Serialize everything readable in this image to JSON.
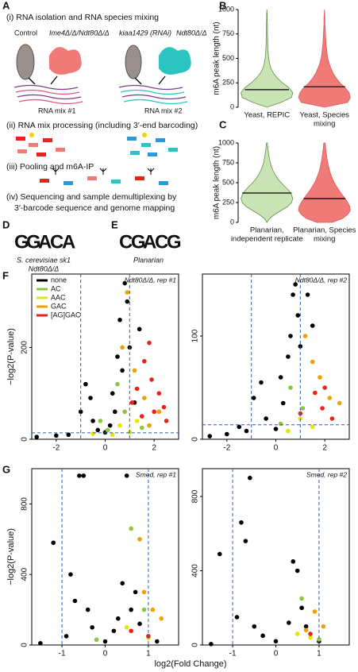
{
  "panel_labels": [
    "A",
    "B",
    "C",
    "D",
    "E",
    "F",
    "G"
  ],
  "panel_a": {
    "step1": "(i) RNA isolation and RNA species mixing",
    "groups": [
      "Control",
      "Ime4Δ/Δ/Ndt80Δ/Δ",
      "kiaa1429 (RNAi)",
      "Ndt80Δ/Δ"
    ],
    "mixes": [
      "RNA mix #1",
      "RNA mix #2"
    ],
    "step2": "(ii) RNA mix processing (including 3′-end barcoding)",
    "step3": "(iii) Pooling and m6A-IP",
    "step4": [
      "(iv) Sequencing and sample demultiplexing by",
      "3′-barcode sequence and genome mapping"
    ]
  },
  "panel_d": {
    "logo": [
      "G",
      "G",
      "A",
      "C",
      "A"
    ],
    "letter_colors": [
      "#f2a400",
      "#f2a400",
      "#22a84a",
      "#2b5fb4",
      "#22a84a"
    ],
    "caption": [
      "S. cerevisiae sk1",
      "Ndt80Δ/Δ"
    ]
  },
  "panel_e": {
    "logo": [
      "C",
      "G",
      "A",
      "C",
      "G"
    ],
    "letter_colors": [
      "#2b5fb4",
      "#f2a400",
      "#22a84a",
      "#2b5fb4",
      "#f2a400"
    ],
    "caption": [
      "Planarian"
    ]
  },
  "x_axis_label": "log2(Fold Change)",
  "chart_data": [
    {
      "type": "violin",
      "ylabel": "m6A peak length (nt)",
      "categories": [
        [
          "Yeast, REPIC"
        ],
        [
          "Yeast, Species",
          "mixing"
        ]
      ],
      "colors": [
        "#c9e3b4",
        "#f07a78"
      ],
      "edge_colors": [
        "#5f8f4a",
        "#e05a58"
      ],
      "density_y": [
        0,
        50,
        100,
        150,
        200,
        250,
        300,
        350,
        400,
        450,
        500,
        550,
        600,
        650,
        700,
        750,
        800,
        850,
        900,
        950,
        1000
      ],
      "density": [
        [
          0,
          0.55,
          0.95,
          1,
          0.85,
          0.6,
          0.4,
          0.25,
          0.15,
          0.1,
          0.07,
          0.05,
          0.04,
          0.03,
          0.03,
          0.02,
          0.02,
          0.02,
          0.01,
          0.01,
          0
        ],
        [
          0,
          0.9,
          1,
          0.95,
          0.8,
          0.6,
          0.45,
          0.33,
          0.25,
          0.18,
          0.13,
          0.1,
          0.08,
          0.06,
          0.05,
          0.04,
          0.03,
          0.02,
          0.02,
          0.01,
          0
        ]
      ],
      "medians": [
        180,
        210
      ],
      "ylim": [
        0,
        1000
      ],
      "yticks": [
        0,
        250,
        500,
        750,
        1000
      ]
    },
    {
      "type": "violin",
      "ylabel": "m6A peak length (nt)",
      "categories": [
        [
          "Planarian,",
          "independent replicate"
        ],
        [
          "Planarian, Species",
          "mixing"
        ]
      ],
      "colors": [
        "#c9e3b4",
        "#f07a78"
      ],
      "edge_colors": [
        "#5f8f4a",
        "#e05a58"
      ],
      "density_y": [
        0,
        50,
        100,
        150,
        200,
        250,
        300,
        350,
        400,
        450,
        500,
        550,
        600,
        650,
        700,
        750,
        800,
        850,
        900,
        950,
        1000
      ],
      "density": [
        [
          0,
          0.1,
          0.3,
          0.55,
          0.8,
          0.95,
          1,
          0.95,
          0.85,
          0.7,
          0.55,
          0.42,
          0.32,
          0.24,
          0.18,
          0.13,
          0.1,
          0.07,
          0.05,
          0.03,
          0.02
        ],
        [
          0.3,
          0.7,
          0.9,
          1,
          0.98,
          0.9,
          0.8,
          0.68,
          0.57,
          0.47,
          0.38,
          0.31,
          0.25,
          0.2,
          0.16,
          0.13,
          0.1,
          0.08,
          0.06,
          0.04,
          0.03
        ]
      ],
      "medians": [
        370,
        300
      ],
      "ylim": [
        0,
        1000
      ],
      "yticks": [
        0,
        250,
        500,
        750,
        1000
      ]
    },
    {
      "type": "scatter",
      "ylabel": "−log2(P-value)",
      "annotation": "Ndt80Δ/Δ, rep #1",
      "legend": "upper left",
      "xlim": [
        -3,
        3
      ],
      "xticks": [
        -2,
        0,
        2
      ],
      "ylim": [
        0,
        360
      ],
      "yticks": [
        0,
        200
      ],
      "vlines": [
        -1,
        1
      ],
      "hline": 14,
      "series": [
        {
          "name": "none",
          "color": "#000000",
          "x": [
            -2.8,
            -2,
            -1.5,
            -1,
            -0.8,
            -0.6,
            -0.5,
            -0.3,
            0,
            0.2,
            0.4,
            0.5,
            0.6,
            0.7,
            0.8,
            0.9,
            1,
            1.2,
            1.4,
            0.3
          ],
          "values": [
            5,
            8,
            10,
            60,
            120,
            90,
            40,
            20,
            15,
            30,
            60,
            180,
            260,
            150,
            340,
            300,
            200,
            80,
            240,
            100
          ]
        },
        {
          "name": "AC",
          "color": "#8cc63f",
          "x": [
            0.1,
            0.5,
            -0.2,
            0.8,
            1.5
          ],
          "values": [
            20,
            120,
            40,
            60,
            25
          ]
        },
        {
          "name": "AAC",
          "color": "#e6e600",
          "x": [
            0.3,
            0.6,
            1.0,
            -0.5,
            1.3
          ],
          "values": [
            10,
            30,
            15,
            12,
            40
          ]
        },
        {
          "name": "GAC",
          "color": "#f0a000",
          "x": [
            0.9,
            1.2,
            1.6,
            2.2,
            0.7,
            1.8
          ],
          "values": [
            320,
            150,
            90,
            60,
            200,
            30
          ]
        },
        {
          "name": "[AG]GAC",
          "color": "#e8221c",
          "x": [
            1.3,
            1.6,
            1.9,
            2.2,
            1.5,
            2.0,
            2.5,
            1.8,
            1.1,
            2.4
          ],
          "values": [
            110,
            170,
            130,
            100,
            50,
            60,
            40,
            210,
            80,
            70
          ]
        }
      ]
    },
    {
      "type": "scatter",
      "annotation": "Ndt80Δ/Δ, rep #2",
      "xlim": [
        -3,
        3
      ],
      "xticks": [
        -2,
        0,
        2
      ],
      "ylim": [
        0,
        160
      ],
      "yticks": [
        0,
        100
      ],
      "vlines": [
        -1,
        1
      ],
      "hline": 14,
      "series": [
        {
          "color": "#000000",
          "x": [
            -2.7,
            -2,
            -1.2,
            -0.9,
            -0.6,
            -0.4,
            0,
            0.3,
            0.5,
            0.6,
            0.7,
            0.8,
            0.9,
            1.0,
            1.3,
            1.5,
            0.2,
            -1.5
          ],
          "values": [
            3,
            5,
            8,
            40,
            55,
            20,
            10,
            35,
            80,
            100,
            140,
            150,
            120,
            90,
            140,
            110,
            60,
            12
          ]
        },
        {
          "color": "#8cc63f",
          "x": [
            0.2,
            0.6,
            1.1
          ],
          "values": [
            15,
            50,
            30
          ]
        },
        {
          "color": "#e6e600",
          "x": [
            0.5,
            1.0,
            1.5
          ],
          "values": [
            8,
            20,
            12
          ]
        },
        {
          "color": "#f0a000",
          "x": [
            1.2,
            1.8,
            2.2,
            2.6,
            1.5
          ],
          "values": [
            100,
            60,
            40,
            35,
            75
          ]
        },
        {
          "color": "#e8221c",
          "x": [
            1.6,
            2.0,
            1.9,
            2.3,
            1.0
          ],
          "values": [
            45,
            50,
            30,
            20,
            25
          ]
        }
      ]
    },
    {
      "type": "scatter",
      "ylabel": "−log2(P-value)",
      "annotation": "Smed, rep #1",
      "xlim": [
        -1.7,
        1.7
      ],
      "xticks": [
        -1,
        0,
        1
      ],
      "ylim": [
        0,
        1000
      ],
      "yticks": [
        0,
        400,
        800
      ],
      "vlines": [
        -1,
        1
      ],
      "series": [
        {
          "color": "#000000",
          "x": [
            -1.5,
            -1.2,
            -0.8,
            -0.6,
            -0.5,
            -0.4,
            -0.7,
            -0.3,
            0,
            0.3,
            0.4,
            0.5,
            0.6,
            0.8,
            1.2,
            -0.9,
            0.2,
            0.7
          ],
          "values": [
            10,
            580,
            400,
            960,
            960,
            200,
            250,
            100,
            20,
            150,
            350,
            960,
            200,
            120,
            20,
            50,
            80,
            300
          ]
        },
        {
          "color": "#8cc63f",
          "x": [
            0.6,
            0.9,
            -0.2
          ],
          "values": [
            660,
            200,
            30
          ]
        },
        {
          "color": "#e6e600",
          "x": [
            0.5,
            1.0
          ],
          "values": [
            100,
            40
          ]
        },
        {
          "color": "#f0a000",
          "x": [
            0.8,
            1.1,
            1.3,
            0.9
          ],
          "values": [
            600,
            200,
            150,
            300
          ]
        },
        {
          "color": "#e8221c",
          "x": [
            0.6,
            1.0
          ],
          "values": [
            80,
            50
          ]
        }
      ]
    },
    {
      "type": "scatter",
      "annotation": "Smed, rep #2",
      "xlim": [
        -1.7,
        1.7
      ],
      "xticks": [
        -1,
        0,
        1
      ],
      "ylim": [
        0,
        950
      ],
      "yticks": [
        0,
        400,
        800
      ],
      "vlines": [
        -1,
        1
      ],
      "series": [
        {
          "color": "#000000",
          "x": [
            -1.5,
            -1.3,
            -0.8,
            -0.7,
            -0.6,
            -0.5,
            -0.3,
            0,
            0.4,
            0.5,
            0.6,
            0.7,
            1.0,
            -0.9,
            0.3
          ],
          "values": [
            5,
            490,
            660,
            560,
            900,
            100,
            50,
            20,
            450,
            400,
            200,
            100,
            20,
            150,
            120
          ]
        },
        {
          "color": "#8cc63f",
          "x": [
            0.6,
            1.0
          ],
          "values": [
            250,
            30
          ]
        },
        {
          "color": "#e6e600",
          "x": [
            0.5,
            0.8
          ],
          "values": [
            60,
            40
          ]
        },
        {
          "color": "#f0a000",
          "x": [
            0.9,
            1.1,
            0.7
          ],
          "values": [
            180,
            100,
            80
          ]
        },
        {
          "color": "#e8221c",
          "x": [
            0.8
          ],
          "values": [
            60
          ]
        }
      ]
    }
  ]
}
